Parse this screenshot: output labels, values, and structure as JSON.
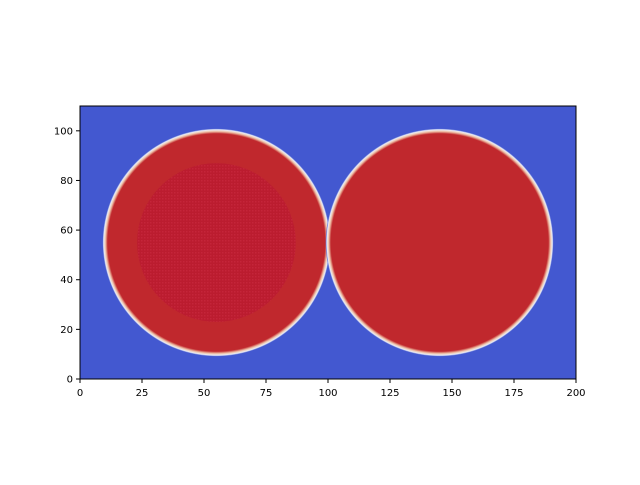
{
  "chart_data": {
    "type": "heatmap",
    "title": "",
    "xlabel": "",
    "ylabel": "",
    "xlim": [
      0,
      200
    ],
    "ylim": [
      0,
      110
    ],
    "grid": false,
    "x_ticks": [
      0,
      25,
      50,
      75,
      100,
      125,
      150,
      175,
      200
    ],
    "y_ticks": [
      0,
      20,
      40,
      60,
      80,
      100
    ],
    "x_tick_labels": [
      "0",
      "25",
      "50",
      "75",
      "100",
      "125",
      "150",
      "175",
      "200"
    ],
    "y_tick_labels": [
      "0",
      "20",
      "40",
      "60",
      "80",
      "100"
    ],
    "colormap": "coolwarm",
    "colors": {
      "background": "#4358d0",
      "field": "#c0282d",
      "core": "#bb1c2f",
      "interface_light": "#eaeef8",
      "interface_warm": "#f0c3a8"
    },
    "regions": [
      {
        "shape": "circle",
        "center_x": 55,
        "center_y": 55,
        "radius": 45,
        "value": "high"
      },
      {
        "shape": "circle",
        "center_x": 55,
        "center_y": 55,
        "radius": 32,
        "value": "core"
      },
      {
        "shape": "circle",
        "center_x": 145,
        "center_y": 55,
        "radius": 45,
        "value": "high"
      }
    ]
  }
}
